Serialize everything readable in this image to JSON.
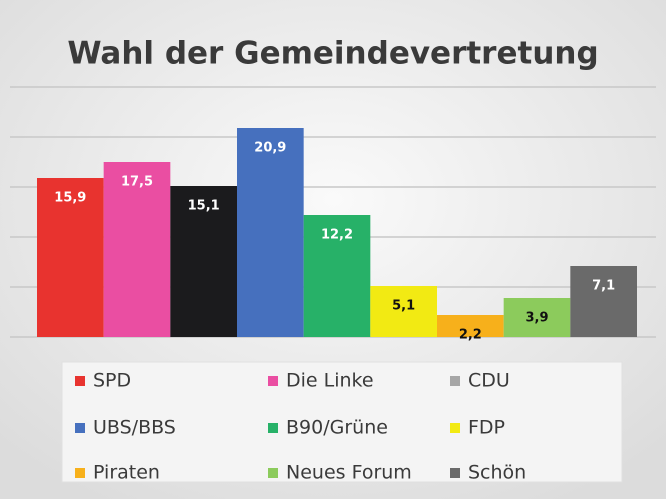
{
  "chart_data": {
    "type": "bar",
    "title": "Wahl der Gemeindevertretung",
    "categories": [
      "SPD",
      "Die Linke",
      "CDU",
      "UBS/BBS",
      "B90/Grüne",
      "FDP",
      "Piraten",
      "Neues Forum",
      "Schön"
    ],
    "values": [
      15.9,
      17.5,
      15.1,
      20.9,
      12.2,
      5.1,
      2.2,
      3.9,
      7.1
    ],
    "value_labels": [
      "15,9",
      "17,5",
      "15,1",
      "20,9",
      "12,2",
      "5,1",
      "2,2",
      "3,9",
      "7,1"
    ],
    "colors": [
      "#e8332f",
      "#ea4ea2",
      "#1b1b1d",
      "#4670be",
      "#27b168",
      "#f2ea13",
      "#f7b01b",
      "#8ccb5c",
      "#6a6a6a"
    ],
    "legend_colors": [
      "#e8332f",
      "#ea4ea2",
      "#a6a6a6",
      "#4670be",
      "#27b168",
      "#f2ea13",
      "#f7b01b",
      "#8ccb5c",
      "#6a6a6a"
    ],
    "label_colors": [
      "#ffffff",
      "#ffffff",
      "#ffffff",
      "#ffffff",
      "#ffffff",
      "#111111",
      "#111111",
      "#111111",
      "#ffffff"
    ],
    "ylim": [
      0,
      25
    ],
    "yticks": [
      0,
      5,
      10,
      15,
      20,
      25
    ],
    "grid": true,
    "legend": "bottom"
  }
}
